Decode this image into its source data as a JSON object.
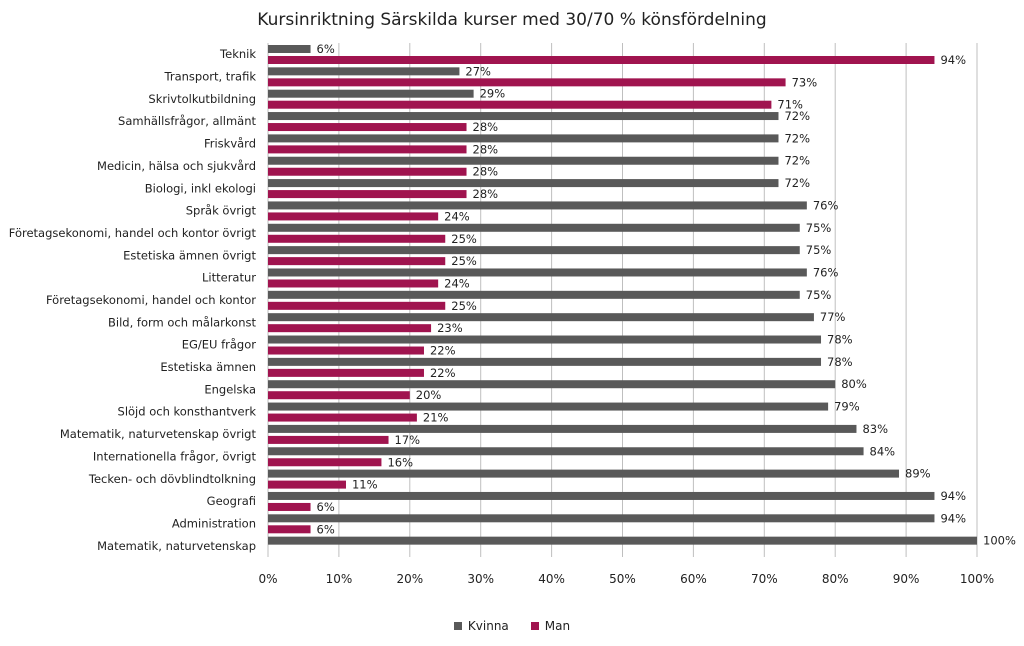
{
  "chart_data": {
    "type": "bar",
    "orientation": "horizontal",
    "title": "Kursinriktning Särskilda kurser med 30/70 % könsfördelning",
    "xlim": [
      0,
      100
    ],
    "x_ticks": [
      "0%",
      "10%",
      "20%",
      "30%",
      "40%",
      "50%",
      "60%",
      "70%",
      "80%",
      "90%",
      "100%"
    ],
    "grid": "vertical",
    "legend_position": "bottom",
    "categories": [
      "Teknik",
      "Transport, trafik",
      "Skrivtolkutbildning",
      "Samhällsfrågor, allmänt",
      "Friskvård",
      "Medicin, hälsa och sjukvård",
      "Biologi, inkl ekologi",
      "Språk övrigt",
      "Företagsekonomi, handel och kontor övrigt",
      "Estetiska ämnen övrigt",
      "Litteratur",
      "Företagsekonomi, handel och kontor",
      "Bild, form och målarkonst",
      "EG/EU frågor",
      "Estetiska ämnen",
      "Engelska",
      "Slöjd och konsthantverk",
      "Matematik, naturvetenskap övrigt",
      "Internationella frågor, övrigt",
      "Tecken- och dövblindtolkning",
      "Geografi",
      "Administration",
      "Matematik, naturvetenskap"
    ],
    "series": [
      {
        "name": "Kvinna",
        "color": "#595959",
        "values": [
          6,
          27,
          29,
          72,
          72,
          72,
          72,
          76,
          75,
          75,
          76,
          75,
          77,
          78,
          78,
          80,
          79,
          83,
          84,
          89,
          94,
          94,
          100
        ],
        "labels": [
          "6%",
          "27%",
          "29%",
          "72%",
          "72%",
          "72%",
          "72%",
          "76%",
          "75%",
          "75%",
          "76%",
          "75%",
          "77%",
          "78%",
          "78%",
          "80%",
          "79%",
          "83%",
          "84%",
          "89%",
          "94%",
          "94%",
          "100%"
        ]
      },
      {
        "name": "Man",
        "color": "#a0144f",
        "values": [
          94,
          73,
          71,
          28,
          28,
          28,
          28,
          24,
          25,
          25,
          24,
          25,
          23,
          22,
          22,
          20,
          21,
          17,
          16,
          11,
          6,
          6,
          null
        ],
        "labels": [
          "94%",
          "73%",
          "71%",
          "28%",
          "28%",
          "28%",
          "28%",
          "24%",
          "25%",
          "25%",
          "24%",
          "25%",
          "23%",
          "22%",
          "22%",
          "20%",
          "21%",
          "17%",
          "16%",
          "11%",
          "6%",
          "6%",
          ""
        ]
      }
    ]
  }
}
